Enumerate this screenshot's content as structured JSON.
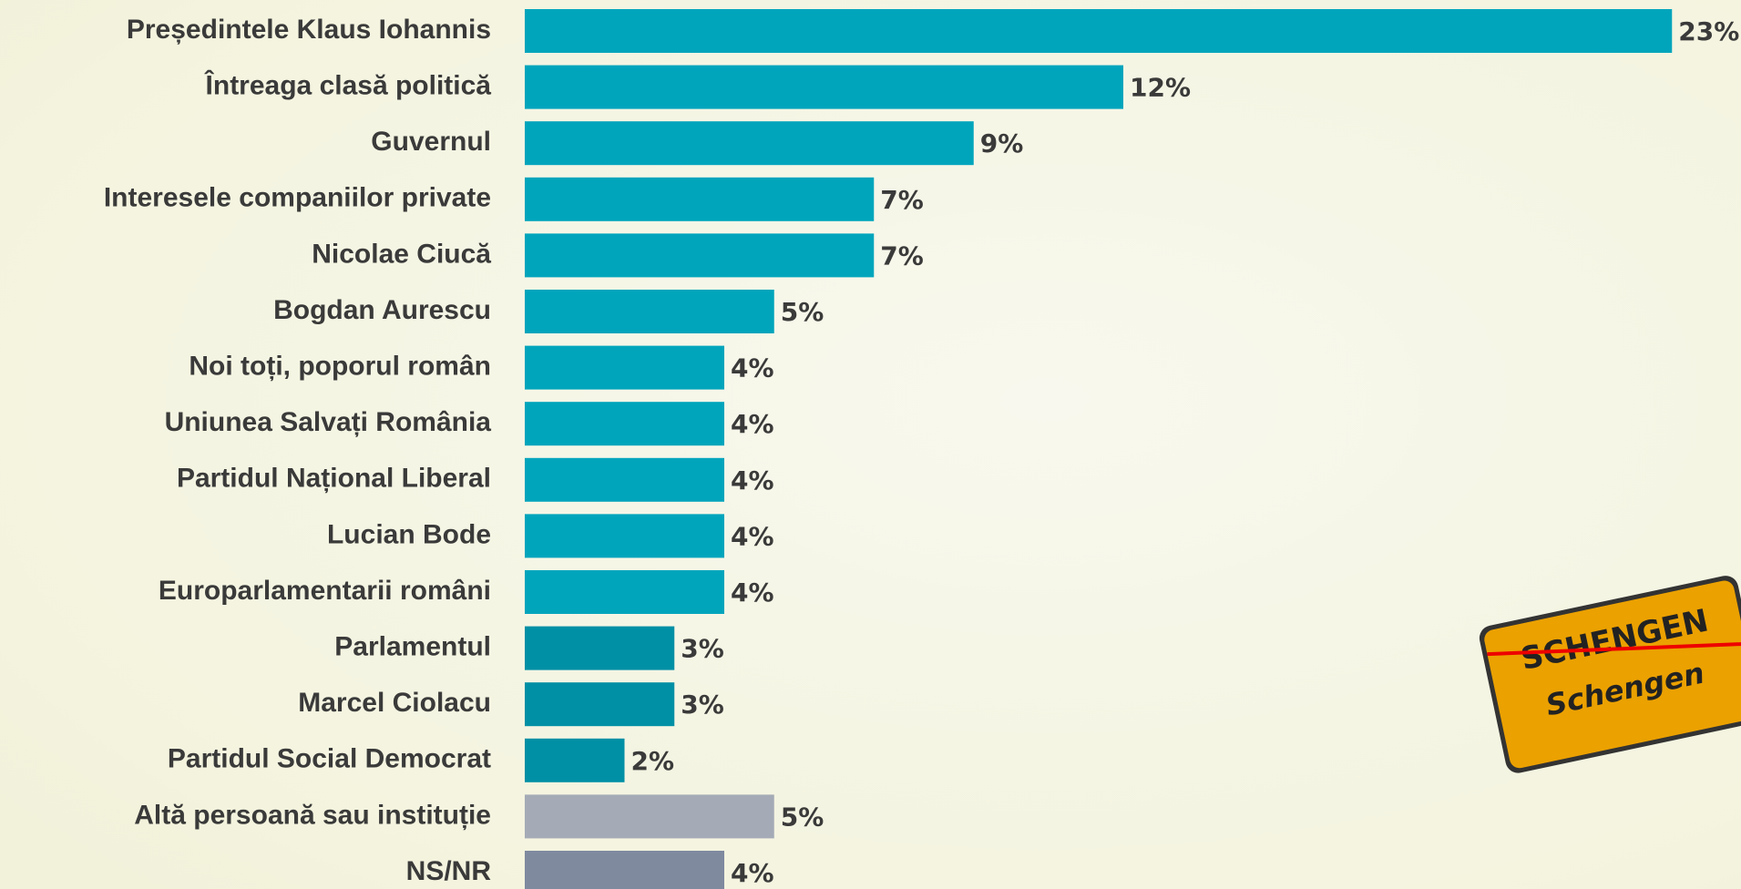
{
  "chart_data": {
    "type": "bar",
    "orientation": "horizontal",
    "categories": [
      "Președintele Klaus Iohannis",
      "Întreaga clasă politică",
      "Guvernul",
      "Interesele companiilor private",
      "Nicolae Ciucă",
      "Bogdan Aurescu",
      "Noi toți, poporul român",
      "Uniunea Salvați România",
      "Partidul Național Liberal",
      "Lucian Bode",
      "Europarlamentarii români",
      "Parlamentul",
      "Marcel Ciolacu",
      "Partidul Social Democrat",
      "Altă persoană sau instituție",
      "NS/NR"
    ],
    "values": [
      23,
      12,
      9,
      7,
      7,
      5,
      4,
      4,
      4,
      4,
      4,
      3,
      3,
      2,
      5,
      4
    ],
    "value_labels": [
      "23%",
      "12%",
      "9%",
      "7%",
      "7%",
      "5%",
      "4%",
      "4%",
      "4%",
      "4%",
      "4%",
      "3%",
      "3%",
      "2%",
      "5%",
      "4%"
    ],
    "colors": [
      "#00a5bc",
      "#00a5bc",
      "#00a5bc",
      "#00a5bc",
      "#00a5bc",
      "#00a5bc",
      "#00a5bc",
      "#00a5bc",
      "#00a5bc",
      "#00a5bc",
      "#00a5bc",
      "#0090a5",
      "#0090a5",
      "#0090a5",
      "#a4abb6",
      "#7f8a9f"
    ],
    "annotations": [
      "SCHENGEN",
      "Schengen"
    ]
  }
}
